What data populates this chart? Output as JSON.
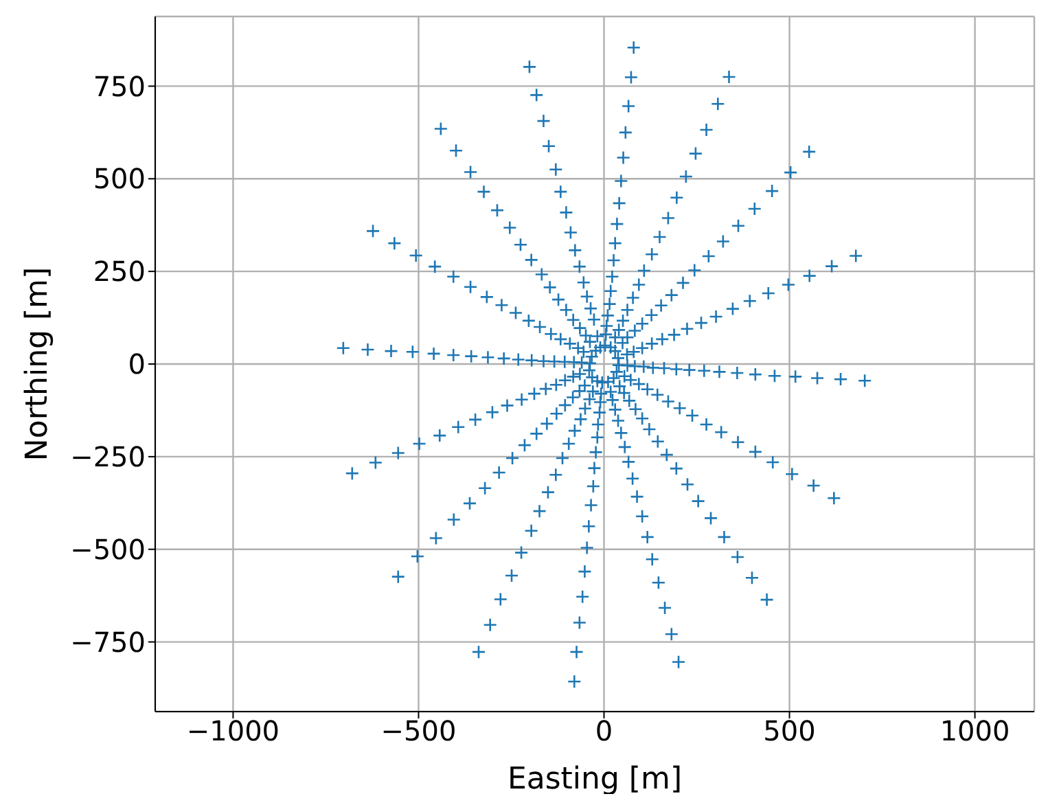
{
  "chart_data": {
    "type": "scatter",
    "xlabel": "Easting [m]",
    "ylabel": "Northing [m]",
    "marker": "cross",
    "grid": true,
    "xlim": [
      -1210,
      1160
    ],
    "ylim": [
      -938,
      938
    ],
    "xticks": [
      {
        "value": -1000,
        "label": "−1000"
      },
      {
        "value": -500,
        "label": "−500"
      },
      0,
      500,
      1000
    ],
    "yticks": [
      {
        "value": -750,
        "label": "−750"
      },
      {
        "value": -500,
        "label": "−500"
      },
      {
        "value": -250,
        "label": "−250"
      },
      0,
      250,
      500,
      750
    ],
    "series": [
      {
        "color": "#1f77b4",
        "x": [
          -201,
          -182,
          -163,
          -149,
          -130,
          -117,
          -102,
          -90,
          -78,
          -66,
          -55,
          -46,
          -36,
          -27,
          -18,
          -10,
          -440,
          -399,
          -360,
          -324,
          -288,
          -254,
          -225,
          -196,
          -168,
          -146,
          -123,
          -102,
          -83,
          -65,
          -49,
          -38,
          -22,
          -623,
          -565,
          -507,
          -456,
          -406,
          -360,
          -316,
          -276,
          -238,
          -203,
          -173,
          -143,
          -117,
          -92,
          -70,
          -55,
          -33,
          -703,
          -637,
          -574,
          -516,
          -459,
          -406,
          -358,
          -313,
          -270,
          -231,
          -195,
          -163,
          -134,
          -106,
          -81,
          -60,
          -38,
          80,
          73,
          66,
          58,
          52,
          46,
          41,
          35,
          30,
          26,
          22,
          18,
          15,
          10,
          7,
          5,
          3,
          337,
          307,
          276,
          247,
          221,
          196,
          173,
          150,
          129,
          108,
          94,
          78,
          63,
          51,
          40,
          30,
          18,
          553,
          503,
          453,
          406,
          362,
          321,
          282,
          244,
          213,
          182,
          154,
          128,
          103,
          83,
          63,
          50,
          30,
          679,
          614,
          554,
          497,
          443,
          393,
          347,
          302,
          262,
          224,
          189,
          157,
          129,
          103,
          80,
          62,
          38,
          703,
          638,
          575,
          516,
          460,
          408,
          359,
          311,
          270,
          230,
          195,
          162,
          132,
          107,
          83,
          63,
          40,
          620,
          565,
          507,
          455,
          408,
          361,
          316,
          276,
          238,
          204,
          173,
          144,
          117,
          94,
          72,
          55,
          34,
          439,
          399,
          360,
          324,
          288,
          254,
          225,
          195,
          169,
          145,
          122,
          103,
          85,
          68,
          54,
          42,
          26,
          201,
          182,
          164,
          147,
          130,
          117,
          103,
          89,
          77,
          66,
          56,
          46,
          38,
          30,
          23,
          18,
          11,
          -80,
          -74,
          -66,
          -58,
          -52,
          -46,
          -41,
          -35,
          -29,
          -26,
          -22,
          -18,
          -16,
          -12,
          -10,
          -8,
          -5,
          -338,
          -307,
          -279,
          -249,
          -223,
          -196,
          -174,
          -151,
          -130,
          -112,
          -95,
          -79,
          -63,
          -51,
          -39,
          -30,
          -18,
          -555,
          -503,
          -453,
          -405,
          -362,
          -321,
          -283,
          -247,
          -214,
          -182,
          -154,
          -128,
          -105,
          -84,
          -66,
          -52,
          -32,
          -679,
          -616,
          -555,
          -498,
          -443,
          -393,
          -347,
          -301,
          -261,
          -222,
          -188,
          -157,
          -129,
          -105,
          -83,
          -65,
          -40
        ],
        "values": [
          802,
          726,
          656,
          588,
          525,
          465,
          409,
          355,
          307,
          263,
          220,
          182,
          150,
          120,
          75,
          45,
          635,
          576,
          518,
          465,
          415,
          368,
          322,
          281,
          242,
          207,
          174,
          146,
          119,
          97,
          77,
          60,
          36,
          359,
          326,
          293,
          263,
          236,
          208,
          181,
          159,
          138,
          117,
          100,
          81,
          67,
          55,
          43,
          33,
          20,
          43,
          39,
          35,
          33,
          28,
          24,
          21,
          18,
          15,
          12,
          10,
          8,
          7,
          6,
          5,
          4,
          2,
          854,
          774,
          696,
          625,
          557,
          494,
          434,
          378,
          326,
          280,
          236,
          197,
          162,
          131,
          103,
          80,
          50,
          775,
          702,
          632,
          568,
          506,
          449,
          394,
          343,
          296,
          252,
          214,
          179,
          146,
          117,
          92,
          72,
          45,
          573,
          517,
          467,
          419,
          373,
          331,
          291,
          253,
          219,
          186,
          158,
          132,
          109,
          90,
          72,
          57,
          35,
          292,
          264,
          238,
          214,
          191,
          170,
          149,
          128,
          111,
          95,
          79,
          67,
          55,
          43,
          33,
          26,
          16,
          -45,
          -41,
          -38,
          -34,
          -32,
          -28,
          -24,
          -21,
          -18,
          -16,
          -14,
          -11,
          -10,
          -7,
          -6,
          -4,
          -3,
          -362,
          -328,
          -297,
          -265,
          -237,
          -211,
          -184,
          -163,
          -139,
          -119,
          -101,
          -83,
          -68,
          -54,
          -43,
          -33,
          -21,
          -636,
          -577,
          -521,
          -467,
          -416,
          -370,
          -325,
          -282,
          -245,
          -209,
          -176,
          -147,
          -122,
          -99,
          -78,
          -60,
          -38,
          -804,
          -729,
          -658,
          -590,
          -527,
          -467,
          -411,
          -358,
          -309,
          -264,
          -224,
          -186,
          -153,
          -123,
          -97,
          -75,
          -48,
          -857,
          -777,
          -698,
          -628,
          -560,
          -496,
          -438,
          -381,
          -330,
          -281,
          -238,
          -198,
          -163,
          -131,
          -103,
          -80,
          -50,
          -777,
          -704,
          -635,
          -571,
          -509,
          -450,
          -397,
          -346,
          -299,
          -254,
          -215,
          -180,
          -149,
          -120,
          -95,
          -74,
          -46,
          -574,
          -519,
          -470,
          -420,
          -376,
          -335,
          -293,
          -254,
          -219,
          -188,
          -161,
          -134,
          -111,
          -90,
          -73,
          -58,
          -36,
          -295,
          -266,
          -240,
          -215,
          -193,
          -170,
          -150,
          -130,
          -112,
          -96,
          -80,
          -67,
          -56,
          -44,
          -34,
          -27,
          -17
        ]
      }
    ]
  }
}
